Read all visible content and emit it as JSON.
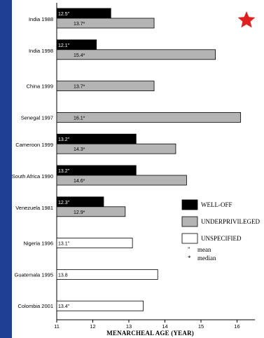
{
  "chart_data": {
    "type": "bar",
    "xlabel": "MENARCHEAL AGE (YEAR)",
    "xlim": [
      11,
      16.5
    ],
    "xticks": [
      11,
      12,
      13,
      14,
      15,
      16
    ],
    "categories": [
      "India 1988",
      "India 1998",
      "China 1999",
      "Senegal 1997",
      "Cameroon 1999",
      "South Africa 1990",
      "Venezuela 1981",
      "Nigeria 1996",
      "Guatemala 1995",
      "Colombia 2001"
    ],
    "series": [
      {
        "name": "WELL-OFF",
        "color": "#000000",
        "values": [
          12.5,
          12.1,
          null,
          null,
          13.2,
          13.2,
          12.3,
          null,
          null,
          null
        ],
        "labels": [
          "12.5\"",
          "12.1\"",
          null,
          null,
          "13.2\"",
          "13.2\"",
          "12.3\"",
          null,
          null,
          null
        ]
      },
      {
        "name": "UNDERPRIVILEGED",
        "color": "#b4b4b4",
        "values": [
          13.7,
          15.4,
          13.7,
          16.1,
          14.3,
          14.6,
          12.9,
          null,
          null,
          null
        ],
        "labels": [
          "13.7*",
          "15.4*",
          "13.7*",
          "16.1*",
          "14.3*",
          "14.6*",
          "12.9*",
          null,
          null,
          null
        ]
      },
      {
        "name": "UNSPECIFIED",
        "color": "#ffffff",
        "values": [
          null,
          null,
          null,
          null,
          null,
          null,
          null,
          13.1,
          13.8,
          13.4
        ],
        "labels": [
          null,
          null,
          null,
          null,
          null,
          null,
          null,
          "13.1\"",
          "13.8",
          "13.4\""
        ]
      }
    ],
    "legend": {
      "position": "right",
      "items": [
        "WELL-OFF",
        "UNDERPRIVILEGED",
        "UNSPECIFIED"
      ],
      "notes": [
        {
          "symbol": "\"",
          "label": "mean"
        },
        {
          "symbol": "*",
          "label": "median"
        }
      ]
    },
    "grid": false
  },
  "decoration": {
    "star_icon": "red-star-icon",
    "star_color": "#e02020",
    "background_color": "#1f3f95"
  }
}
